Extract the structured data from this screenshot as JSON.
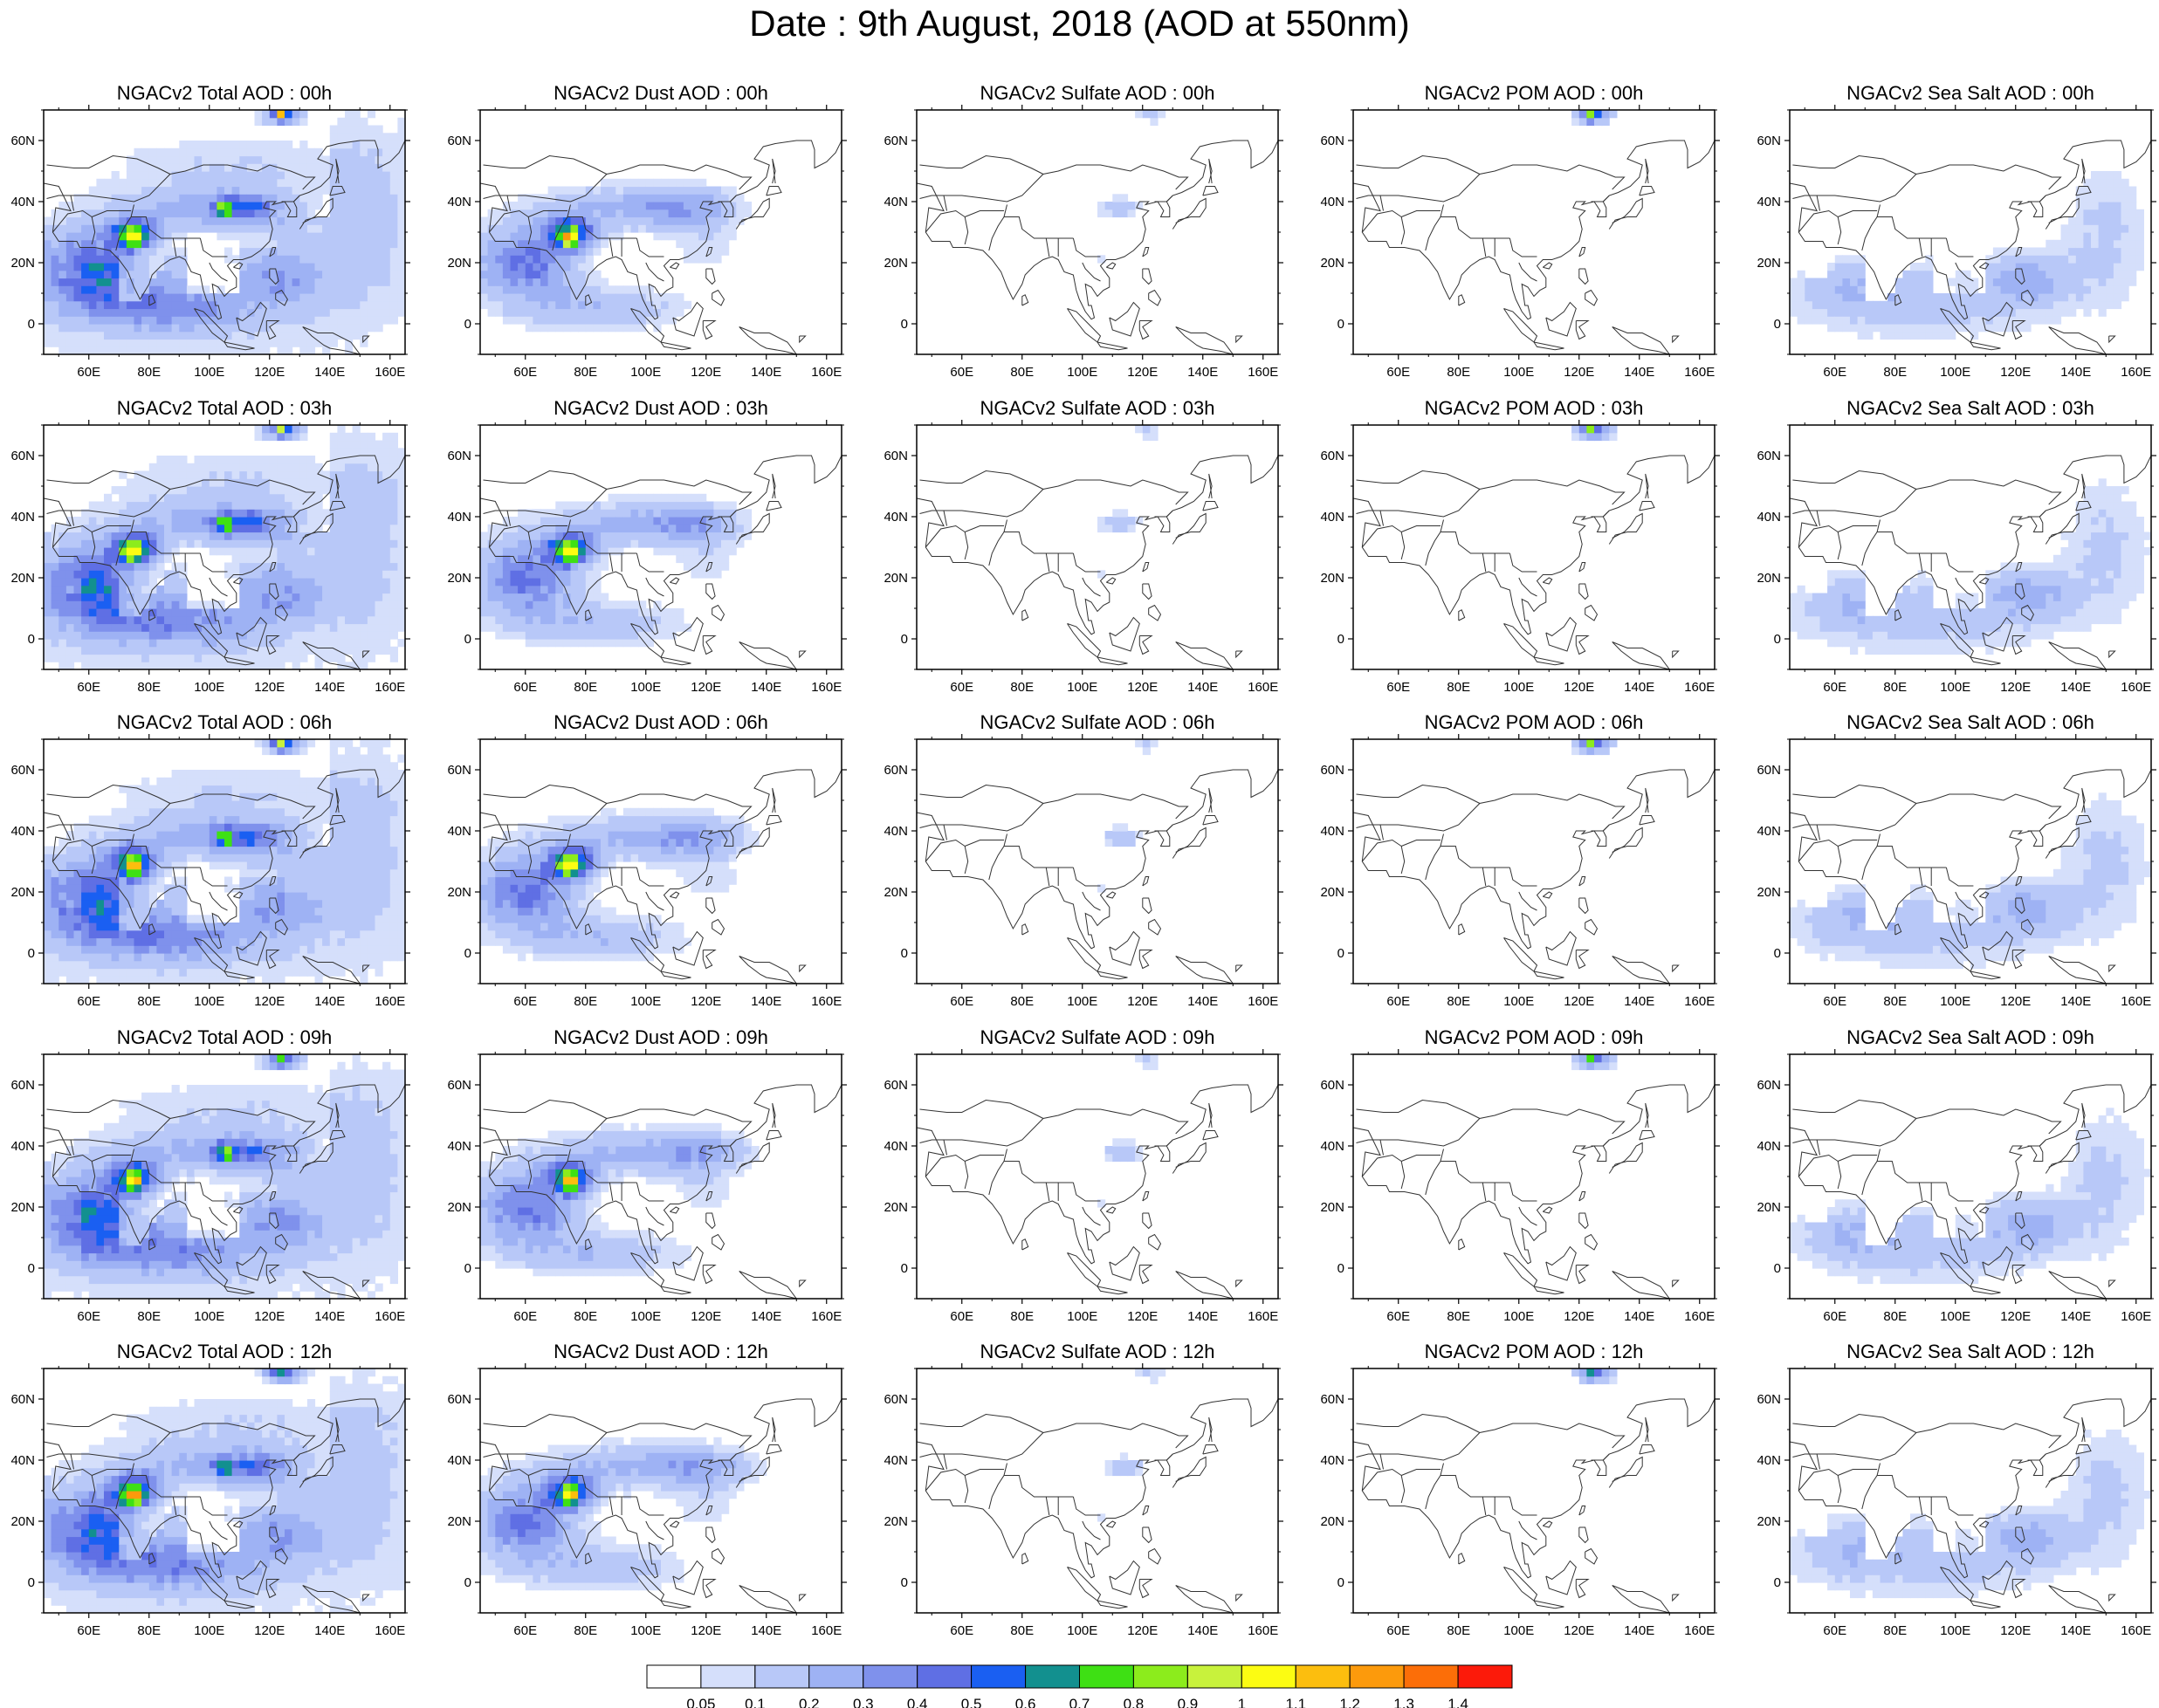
{
  "title": "Date : 9th August, 2018 (AOD at 550nm)",
  "lon_ticks": [
    "60E",
    "80E",
    "100E",
    "120E",
    "140E",
    "160E"
  ],
  "lat_ticks": [
    "60N",
    "40N",
    "20N",
    "0"
  ],
  "map_extent": {
    "lon": [
      45,
      165
    ],
    "lat": [
      -10,
      70
    ]
  },
  "species": [
    "total",
    "dust",
    "sulfate",
    "pom",
    "seasalt"
  ],
  "times": [
    "00h",
    "03h",
    "06h",
    "09h",
    "12h"
  ],
  "panel_titles": [
    [
      "NGACv2 Total AOD : 00h",
      "NGACv2 Dust AOD : 00h",
      "NGACv2 Sulfate AOD : 00h",
      "NGACv2 POM AOD : 00h",
      "NGACv2 Sea Salt AOD : 00h"
    ],
    [
      "NGACv2 Total AOD : 03h",
      "NGACv2 Dust AOD : 03h",
      "NGACv2 Sulfate AOD : 03h",
      "NGACv2 POM AOD : 03h",
      "NGACv2 Sea Salt AOD : 03h"
    ],
    [
      "NGACv2 Total AOD : 06h",
      "NGACv2 Dust AOD : 06h",
      "NGACv2 Sulfate AOD : 06h",
      "NGACv2 POM AOD : 06h",
      "NGACv2 Sea Salt AOD : 06h"
    ],
    [
      "NGACv2 Total AOD : 09h",
      "NGACv2 Dust AOD : 09h",
      "NGACv2 Sulfate AOD : 09h",
      "NGACv2 POM AOD : 09h",
      "NGACv2 Sea Salt  AOD : 09h"
    ],
    [
      "NGACv2 Total AOD  : 12h",
      "NGACv2 Dust AOD : 12h",
      "NGACv2 Sulfate AOD : 12h",
      "NGACv2 POM  AOD : 12h",
      "NGACv2 Sea Salt  AOD : 12h"
    ]
  ],
  "colorbar": {
    "labels": [
      "0.05",
      "0.1",
      "0.2",
      "0.3",
      "0.4",
      "0.5",
      "0.6",
      "0.7",
      "0.8",
      "0.9",
      "1",
      "1.1",
      "1.2",
      "1.3",
      "1.4"
    ],
    "colors": [
      "#ffffff",
      "#d5dffb",
      "#b8c8f8",
      "#9eb2f4",
      "#7f91ec",
      "#5f6fe4",
      "#1a5ff2",
      "#12908f",
      "#3ee014",
      "#8cec1c",
      "#c8f23c",
      "#fcfc12",
      "#fcbe0e",
      "#fc9a0c",
      "#fc6e08",
      "#fc1a0a"
    ]
  }
}
